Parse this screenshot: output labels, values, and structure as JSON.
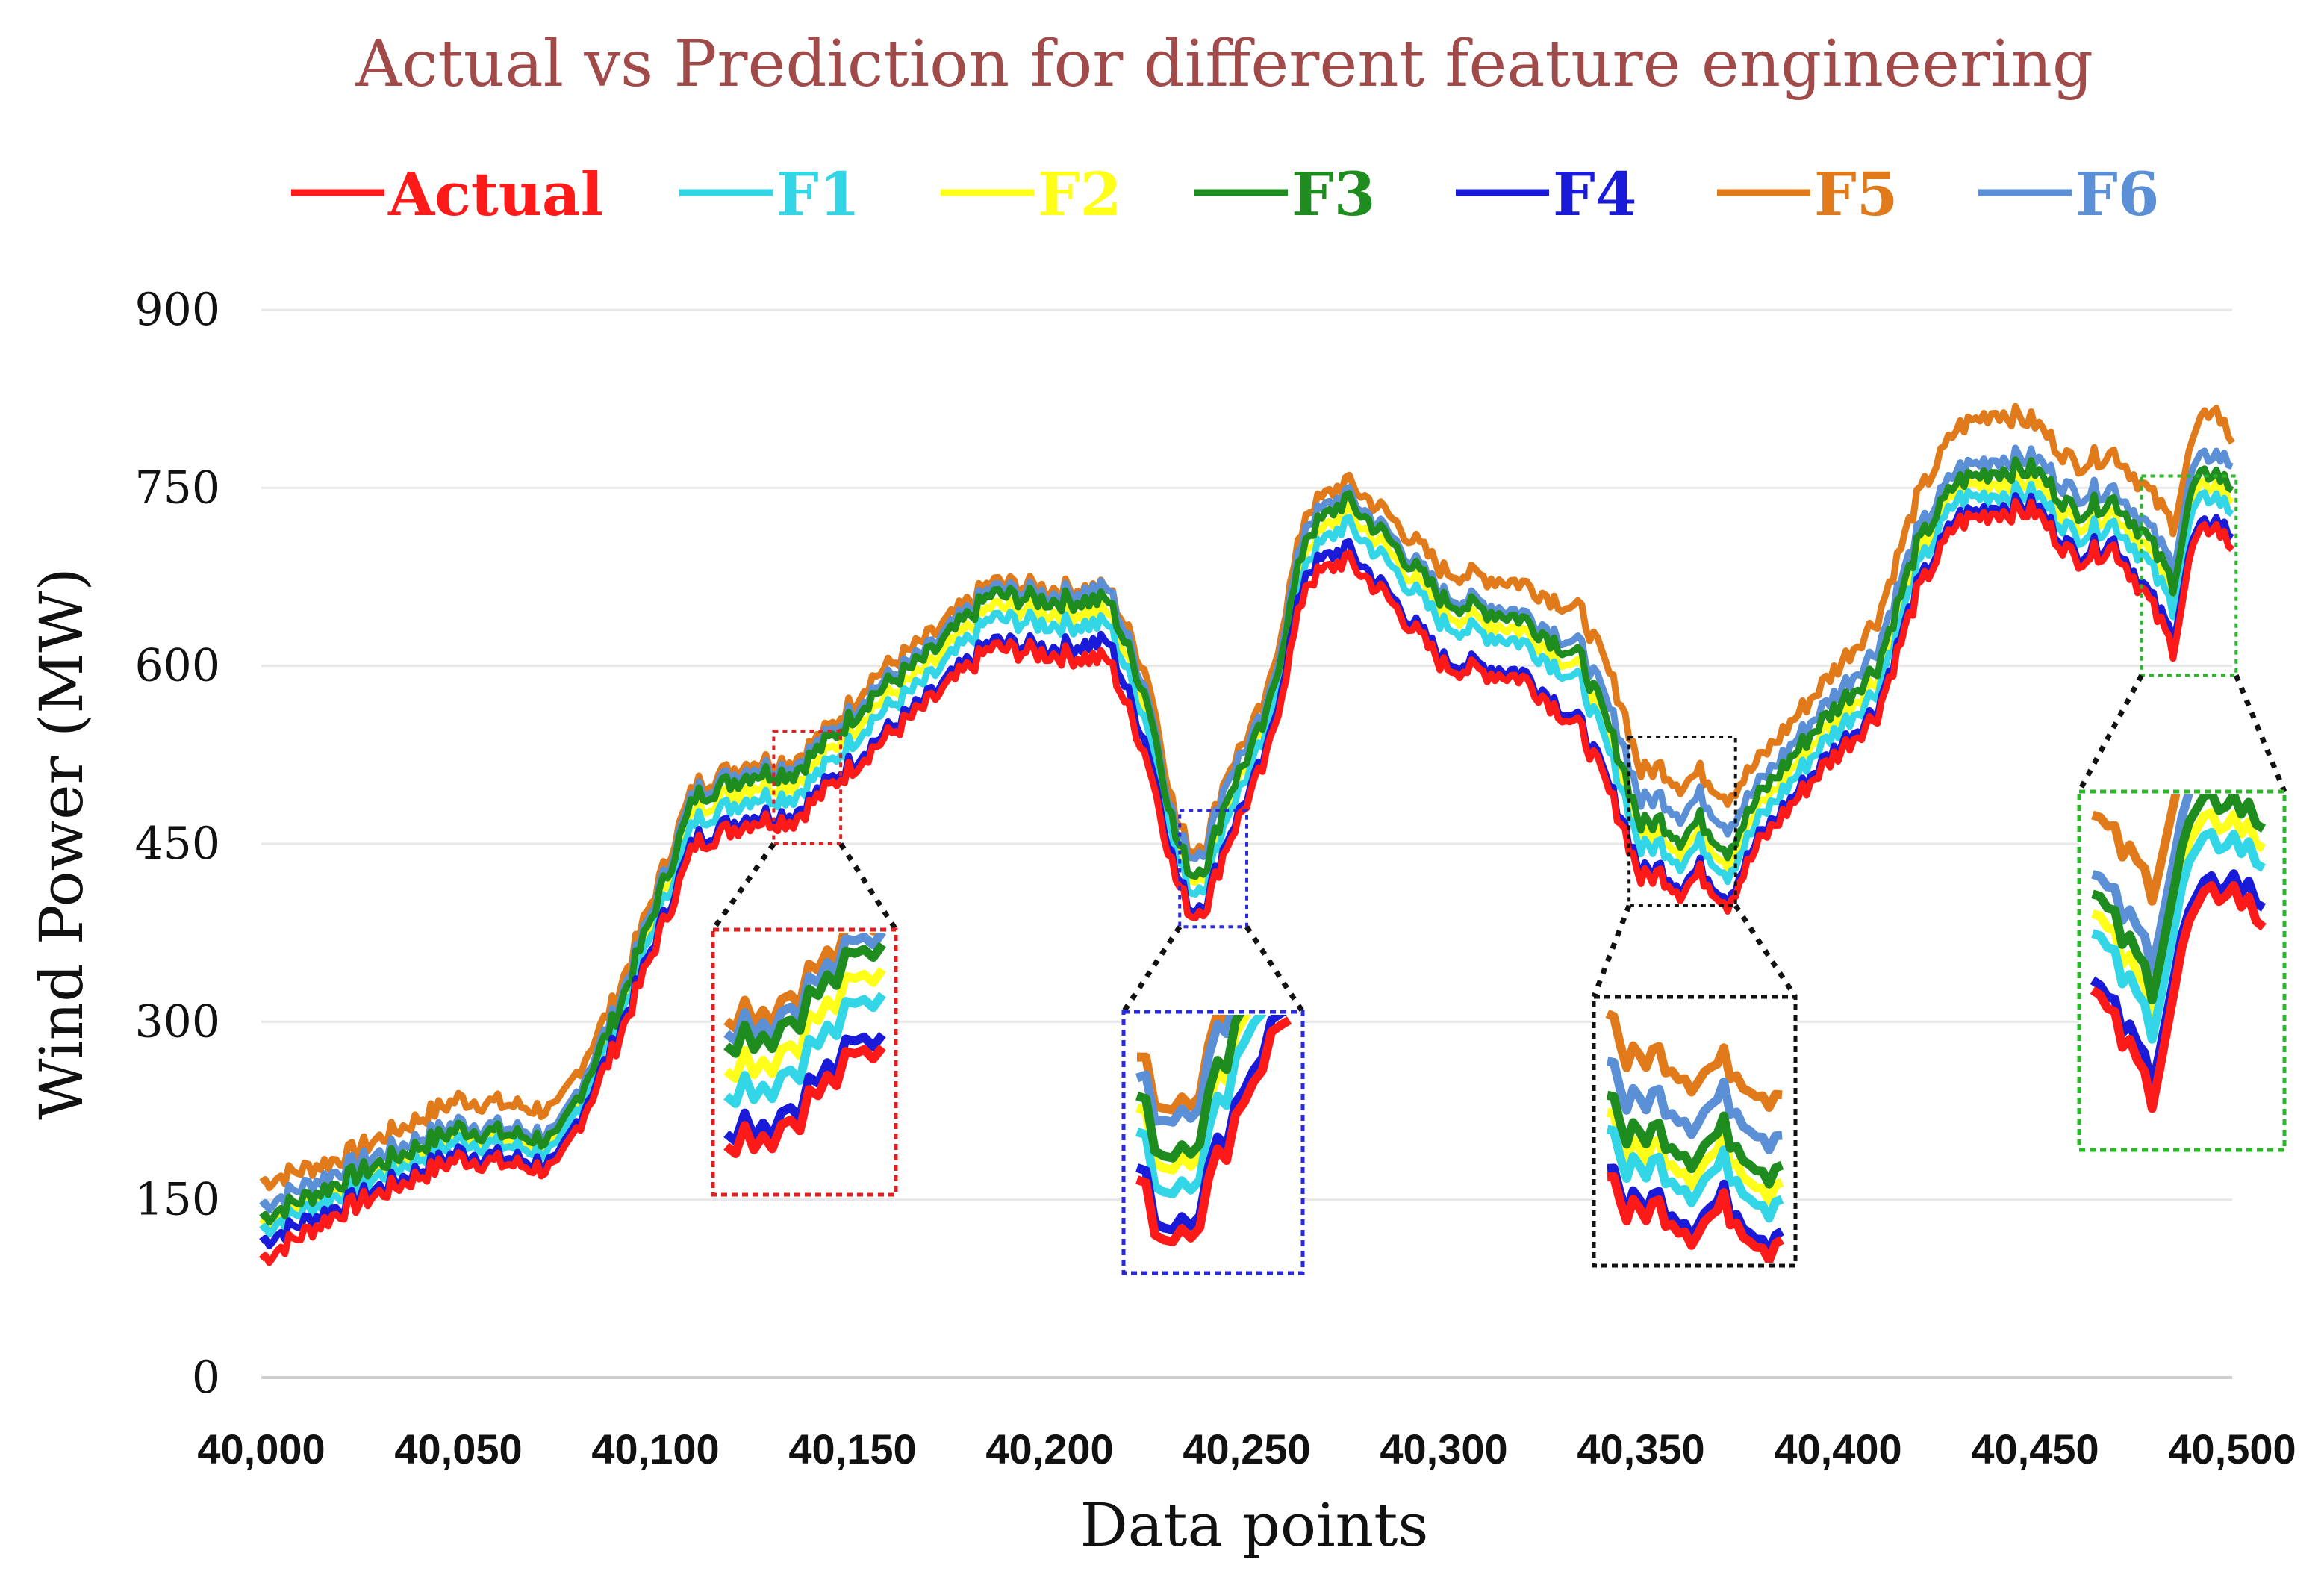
{
  "chart_data": {
    "type": "line",
    "title": "Actual vs Prediction for different feature engineering",
    "xlabel": "Data points",
    "ylabel": "Wind Power (MW)",
    "xlim": [
      40000,
      40500
    ],
    "ylim": [
      0,
      900
    ],
    "x_ticks": [
      40000,
      40050,
      40100,
      40150,
      40200,
      40250,
      40300,
      40350,
      40400,
      40450,
      40500
    ],
    "x_tick_labels": [
      "40,000",
      "40,050",
      "40,100",
      "40,150",
      "40,200",
      "40,250",
      "40,300",
      "40,350",
      "40,400",
      "40,450",
      "40,500"
    ],
    "y_ticks": [
      0,
      150,
      300,
      450,
      600,
      750,
      900
    ],
    "y_tick_labels": [
      "0",
      "150",
      "300",
      "450",
      "600",
      "750",
      "900"
    ],
    "grid": true,
    "legend_position": "top",
    "x": [
      40000,
      40020,
      40050,
      40075,
      40090,
      40110,
      40125,
      40135,
      40145,
      40155,
      40170,
      40185,
      40200,
      40215,
      40225,
      40232,
      40236,
      40240,
      40245,
      40255,
      40265,
      40275,
      40285,
      40300,
      40320,
      40335,
      40345,
      40350,
      40355,
      40360,
      40365,
      40372,
      40380,
      40395,
      40410,
      40420,
      40430,
      40440,
      40450,
      40460,
      40470,
      40478,
      40485,
      40490,
      40495,
      40500
    ],
    "series": [
      {
        "name": "Actual",
        "color": "#ff1a1a",
        "values": [
          100,
          140,
          185,
          175,
          280,
          450,
          470,
          470,
          500,
          530,
          570,
          615,
          610,
          605,
          520,
          420,
          390,
          400,
          450,
          520,
          670,
          690,
          660,
          600,
          590,
          545,
          470,
          420,
          425,
          410,
          425,
          400,
          450,
          510,
          560,
          660,
          720,
          730,
          730,
          690,
          700,
          660,
          615,
          700,
          720,
          700
        ]
      },
      {
        "name": "F1",
        "color": "#33d6e6",
        "values": [
          125,
          155,
          200,
          190,
          295,
          470,
          490,
          490,
          520,
          555,
          590,
          640,
          635,
          635,
          550,
          440,
          410,
          420,
          475,
          540,
          690,
          720,
          690,
          635,
          620,
          585,
          500,
          445,
          450,
          435,
          450,
          425,
          470,
          530,
          580,
          680,
          740,
          745,
          745,
          710,
          720,
          690,
          650,
          730,
          745,
          730
        ]
      },
      {
        "name": "F2",
        "color": "#ffff1a",
        "values": [
          130,
          160,
          205,
          195,
          300,
          480,
          500,
          500,
          530,
          565,
          600,
          650,
          645,
          645,
          560,
          450,
          420,
          430,
          485,
          550,
          700,
          730,
          700,
          645,
          630,
          595,
          510,
          455,
          460,
          445,
          460,
          435,
          480,
          540,
          590,
          690,
          750,
          755,
          755,
          720,
          730,
          700,
          660,
          740,
          755,
          740
        ]
      },
      {
        "name": "F3",
        "color": "#1f8c1f",
        "values": [
          135,
          165,
          210,
          200,
          305,
          490,
          510,
          510,
          540,
          575,
          610,
          660,
          655,
          655,
          570,
          455,
          425,
          435,
          490,
          555,
          710,
          740,
          710,
          655,
          640,
          605,
          520,
          465,
          470,
          455,
          470,
          445,
          490,
          550,
          600,
          700,
          755,
          765,
          765,
          730,
          740,
          710,
          670,
          750,
          765,
          750
        ]
      },
      {
        "name": "F4",
        "color": "#1a1ad9",
        "values": [
          115,
          145,
          190,
          180,
          285,
          455,
          475,
          475,
          505,
          535,
          575,
          620,
          615,
          620,
          530,
          425,
          395,
          405,
          455,
          525,
          680,
          700,
          665,
          605,
          595,
          550,
          475,
          425,
          430,
          415,
          430,
          405,
          455,
          515,
          565,
          665,
          725,
          735,
          735,
          695,
          705,
          665,
          625,
          705,
          725,
          710
        ]
      },
      {
        "name": "F5",
        "color": "#e07a1a",
        "values": [
          165,
          185,
          235,
          225,
          320,
          500,
          520,
          520,
          550,
          590,
          625,
          670,
          665,
          665,
          590,
          470,
          445,
          455,
          510,
          570,
          730,
          755,
          730,
          680,
          670,
          645,
          570,
          510,
          515,
          500,
          510,
          490,
          520,
          580,
          640,
          740,
          800,
          815,
          805,
          770,
          780,
          750,
          720,
          790,
          820,
          790
        ]
      },
      {
        "name": "F6",
        "color": "#5b8fd6",
        "values": [
          145,
          175,
          215,
          205,
          310,
          495,
          515,
          515,
          545,
          580,
          615,
          665,
          660,
          665,
          575,
          460,
          440,
          450,
          505,
          560,
          720,
          745,
          715,
          660,
          645,
          615,
          540,
          485,
          490,
          475,
          490,
          465,
          500,
          560,
          615,
          710,
          765,
          775,
          775,
          745,
          750,
          720,
          685,
          765,
          780,
          770
        ]
      }
    ],
    "zoom_boxes": [
      {
        "x_range": [
          40130,
          40147
        ],
        "y_range": [
          450,
          545
        ],
        "color": "#e02020"
      },
      {
        "x_range": [
          40233,
          40250
        ],
        "y_range": [
          380,
          478
        ],
        "color": "#2a2ae0"
      },
      {
        "x_range": [
          40347,
          40374
        ],
        "y_range": [
          398,
          540
        ],
        "color": "#111111"
      },
      {
        "x_range": [
          40477,
          40501
        ],
        "y_range": [
          592,
          760
        ],
        "color": "#2ab82a"
      }
    ]
  }
}
